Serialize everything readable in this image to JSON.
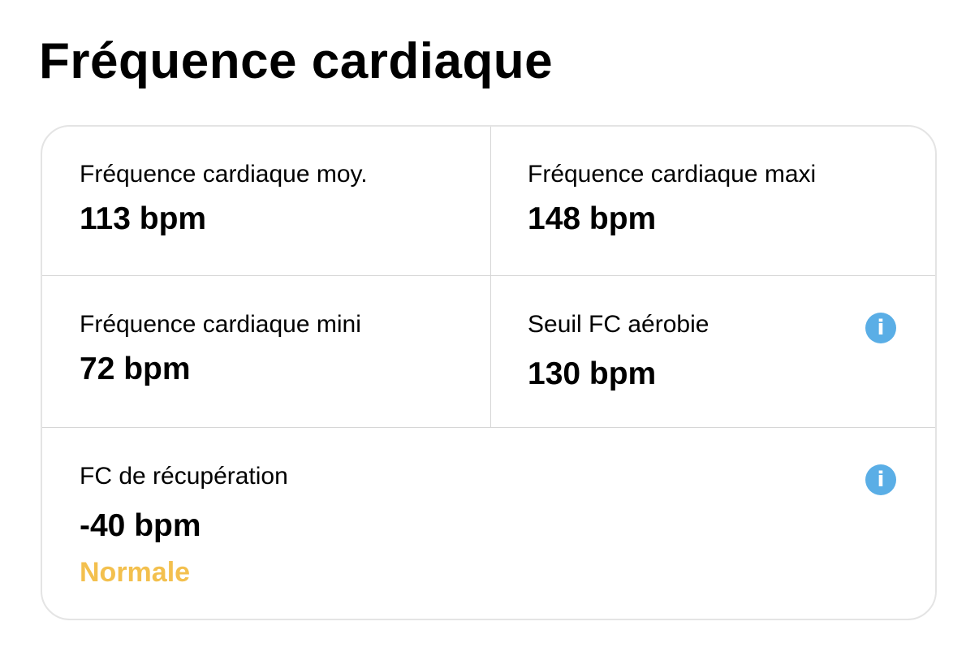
{
  "title": "Fréquence cardiaque",
  "metrics": [
    {
      "label": "Fréquence cardiaque moy.",
      "value": "113 bpm"
    },
    {
      "label": "Fréquence cardiaque maxi",
      "value": "148 bpm"
    },
    {
      "label": "Fréquence cardiaque mini",
      "value": "72 bpm"
    },
    {
      "label": "Seuil FC aérobie",
      "value": "130 bpm",
      "icon": "info-icon"
    },
    {
      "label": "FC de récupération",
      "value": "-40 bpm",
      "status": "Normale",
      "icon": "info-icon"
    }
  ],
  "colors": {
    "status": "#f3c04e",
    "info": "#5aaee6",
    "divider": "#d6d6d6"
  },
  "info_glyph": "i"
}
